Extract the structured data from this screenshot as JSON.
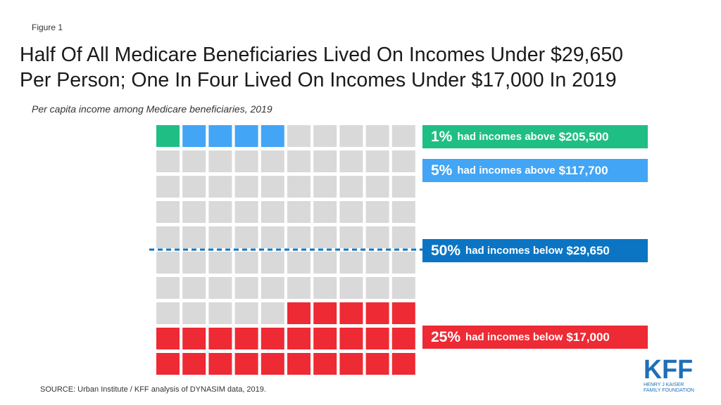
{
  "figure_label": "Figure 1",
  "title_line1": "Half Of All Medicare Beneficiaries Lived On Incomes Under $29,650",
  "title_line2": "Per Person; One In Four Lived On Incomes Under $17,000 In 2019",
  "subtitle": "Per capita income among Medicare beneficiaries, 2019",
  "source": "SOURCE: Urban Institute  / KFF analysis of DYNASIM  data, 2019.",
  "logo": {
    "mark": "KFF",
    "line1": "HENRY J KAISER",
    "line2": "FAMILY FOUNDATION"
  },
  "colors": {
    "top1": "#1fbe85",
    "top5": "#42a5f5",
    "median": "#0b75c4",
    "bottom25": "#ee2a34",
    "other": "#d9d9d9",
    "median_line": "#0b75c4"
  },
  "callouts": [
    {
      "pct": "1%",
      "text": "had incomes above",
      "amount": "$205,500",
      "color": "#1fbe85"
    },
    {
      "pct": "5%",
      "text": "had incomes above",
      "amount": "$117,700",
      "color": "#42a5f5"
    },
    {
      "pct": "50%",
      "text": "had incomes below",
      "amount": "$29,650",
      "color": "#0b75c4"
    },
    {
      "pct": "25%",
      "text": "had incomes below",
      "amount": "$17,000",
      "color": "#ee2a34"
    }
  ],
  "chart_data": {
    "type": "waffle",
    "grid": {
      "rows": 10,
      "cols": 10,
      "total": 100
    },
    "fill_order": "row-major, top-left to bottom-right",
    "segments": [
      {
        "name": "1% had incomes above $205,500",
        "count": 1,
        "color": "#1fbe85"
      },
      {
        "name": "5% had incomes above $117,700",
        "count": 4,
        "color": "#42a5f5"
      },
      {
        "name": "Other",
        "count": 70,
        "color": "#d9d9d9"
      },
      {
        "name": "25% had incomes below $17,000",
        "count": 25,
        "color": "#ee2a34"
      }
    ],
    "median_line": {
      "label": "50% had incomes below $29,650",
      "after_row": 5,
      "style": "dashed"
    }
  }
}
